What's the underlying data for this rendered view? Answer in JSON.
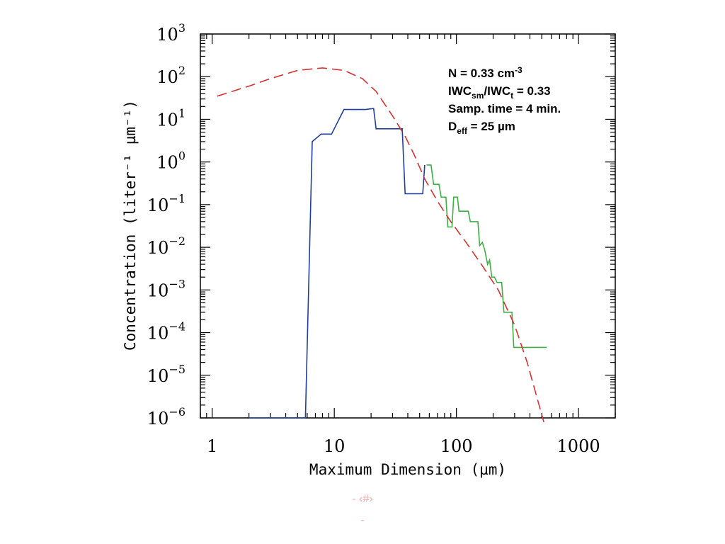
{
  "chart_data": {
    "type": "line",
    "xlabel": "Maximum Dimension (µm)",
    "ylabel": "Concentration (liter⁻¹ µm⁻¹)",
    "xscale": "log",
    "yscale": "log",
    "xlim": [
      0.8,
      2000
    ],
    "ylim_exp": [
      -6,
      3
    ],
    "x_ticks": [
      {
        "value": 1,
        "label": "1"
      },
      {
        "value": 10,
        "label": "10"
      },
      {
        "value": 100,
        "label": "100"
      },
      {
        "value": 1000,
        "label": "1000"
      }
    ],
    "y_ticks_exp": [
      -6,
      -5,
      -4,
      -3,
      -2,
      -1,
      0,
      1,
      2,
      3
    ],
    "annotations": {
      "line1": {
        "text": "N = 0.33 cm",
        "sup": "-3"
      },
      "line2": {
        "a": "IWC",
        "a_sub": "sm",
        "b": "/IWC",
        "b_sub": "t",
        "c": " = 0.33"
      },
      "line3": {
        "text": "Samp. time = 4 min."
      },
      "line4": {
        "a": "D",
        "a_sub": "eff",
        "c": " = 25 µm"
      }
    },
    "series": [
      {
        "style": "step",
        "color": "#1f3f9f",
        "points": [
          [
            2,
            1e-06
          ],
          [
            5.8,
            1e-06
          ],
          [
            6.6,
            3
          ],
          [
            7.8,
            4.5
          ],
          [
            9.5,
            4.5
          ],
          [
            12,
            17
          ],
          [
            18,
            17
          ],
          [
            21,
            18
          ],
          [
            22,
            6
          ],
          [
            36,
            6
          ],
          [
            38,
            0.18
          ],
          [
            53,
            0.18
          ],
          [
            55,
            0.85
          ]
        ]
      },
      {
        "style": "step",
        "color": "#3cb043",
        "points": [
          [
            57,
            0.85
          ],
          [
            62,
            0.85
          ],
          [
            65,
            0.3
          ],
          [
            72,
            0.3
          ],
          [
            75,
            0.15
          ],
          [
            82,
            0.15
          ],
          [
            85,
            0.03
          ],
          [
            92,
            0.03
          ],
          [
            95,
            0.15
          ],
          [
            102,
            0.15
          ],
          [
            105,
            0.07
          ],
          [
            125,
            0.07
          ],
          [
            130,
            0.04
          ],
          [
            150,
            0.04
          ],
          [
            155,
            0.011
          ],
          [
            163,
            0.013
          ],
          [
            170,
            0.009
          ],
          [
            180,
            0.004
          ],
          [
            187,
            0.005
          ],
          [
            195,
            0.002
          ],
          [
            205,
            0.002
          ],
          [
            215,
            0.0015
          ],
          [
            225,
            0.0015
          ],
          [
            235,
            0.0015
          ],
          [
            245,
            0.0003
          ],
          [
            285,
            0.0003
          ],
          [
            295,
            4.5e-05
          ],
          [
            550,
            4.5e-05
          ]
        ]
      },
      {
        "style": "dashed",
        "color": "#d93030",
        "points": [
          [
            1.1,
            35
          ],
          [
            2,
            60
          ],
          [
            3,
            90
          ],
          [
            5,
            140
          ],
          [
            8,
            160
          ],
          [
            12,
            140
          ],
          [
            17,
            90
          ],
          [
            22,
            45
          ],
          [
            30,
            12
          ],
          [
            38,
            4
          ],
          [
            45,
            1.5
          ],
          [
            55,
            0.4
          ],
          [
            70,
            0.12
          ],
          [
            90,
            0.04
          ],
          [
            120,
            0.013
          ],
          [
            160,
            0.004
          ],
          [
            220,
            0.001
          ],
          [
            300,
            0.00015
          ],
          [
            380,
            2e-05
          ],
          [
            450,
            3.5e-06
          ],
          [
            520,
            8e-07
          ]
        ]
      }
    ]
  },
  "footer": {
    "line1": "- ‹#›",
    "line2": "-"
  }
}
